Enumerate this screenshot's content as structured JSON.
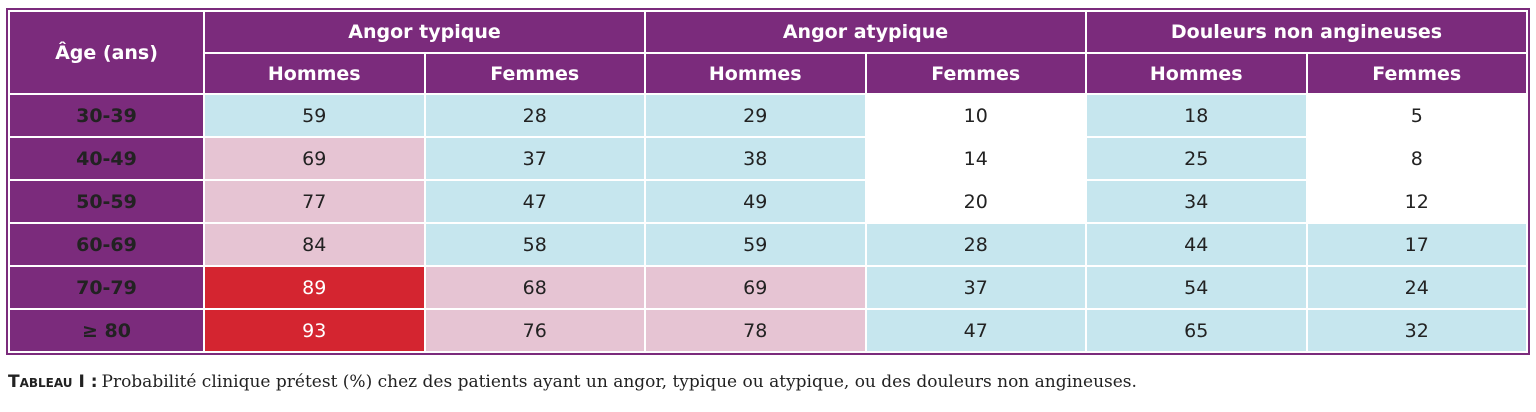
{
  "table": {
    "age_header": "Âge (ans)",
    "groups": [
      "Angor typique",
      "Angor atypique",
      "Douleurs non angineuses"
    ],
    "subheaders": [
      "Hommes",
      "Femmes",
      "Hommes",
      "Femmes",
      "Hommes",
      "Femmes"
    ],
    "rows": [
      [
        "30-39",
        59,
        28,
        29,
        10,
        18,
        5
      ],
      [
        "40-49",
        69,
        37,
        38,
        14,
        25,
        8
      ],
      [
        "50-59",
        77,
        47,
        49,
        20,
        34,
        12
      ],
      [
        "60-69",
        84,
        58,
        59,
        28,
        44,
        17
      ],
      [
        "70-79",
        89,
        68,
        69,
        37,
        54,
        24
      ],
      [
        "≥ 80",
        93,
        76,
        78,
        47,
        65,
        32
      ]
    ]
  },
  "caption": {
    "label": "Tableau I :",
    "text": "Probabilité clinique prétest (%) chez des patients ayant un angor, typique ou atypique, ou des douleurs non angineuses."
  }
}
